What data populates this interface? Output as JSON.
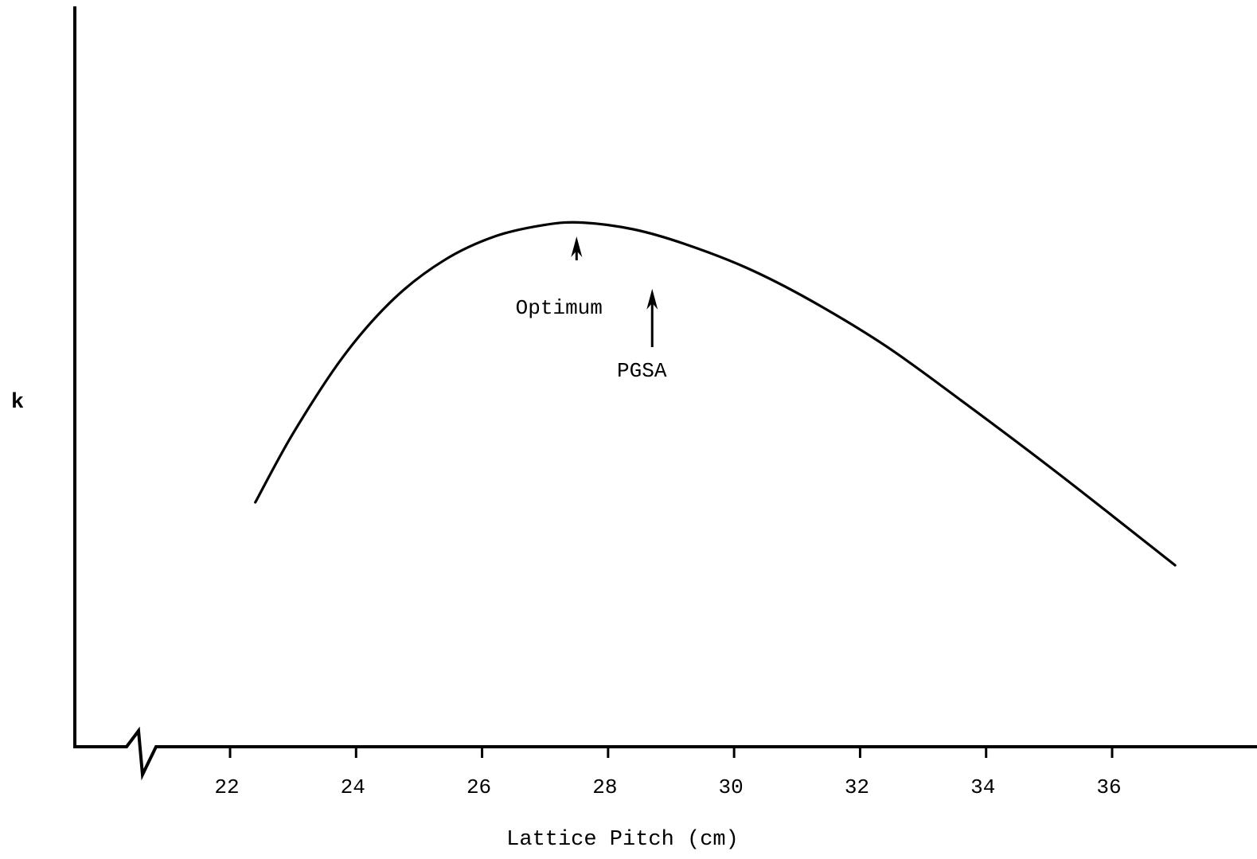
{
  "chart_data": {
    "type": "line",
    "title": "",
    "xlabel": "Lattice Pitch (cm)",
    "ylabel": "k",
    "xlim": [
      20,
      38.5
    ],
    "ylim": [
      0,
      1
    ],
    "x_ticks": [
      "22",
      "24",
      "26",
      "28",
      "30",
      "32",
      "34",
      "36"
    ],
    "y_ticks": [],
    "axis_break": "x",
    "grid": false,
    "series": [
      {
        "x": [
          22.4,
          23.0,
          23.8,
          24.6,
          25.4,
          26.2,
          27.0,
          27.6,
          28.4,
          29.2,
          30.2,
          31.2,
          32.4,
          33.6,
          35.0,
          36.2,
          37.0
        ],
        "y": [
          0.443,
          0.568,
          0.708,
          0.812,
          0.882,
          0.925,
          0.946,
          0.95,
          0.938,
          0.912,
          0.868,
          0.81,
          0.727,
          0.628,
          0.508,
          0.401,
          0.329
        ]
      }
    ],
    "annotations": [
      {
        "text": "Optimum",
        "x": 27.5,
        "y": 0.925,
        "arrow": true
      },
      {
        "text": "PGSA",
        "x": 28.7,
        "y": 0.83,
        "arrow": true
      }
    ]
  }
}
